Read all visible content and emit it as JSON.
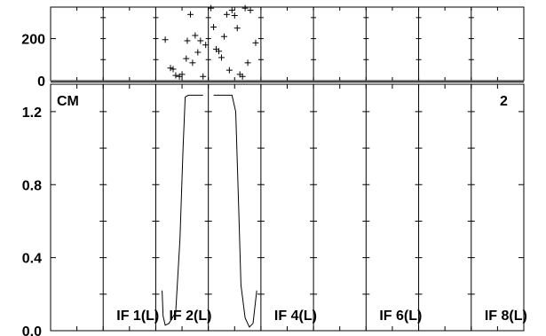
{
  "chart_data": {
    "type": "line",
    "panel_label": "CM",
    "page_number": "2",
    "top": {
      "ylim": [
        0,
        350
      ],
      "yticks": [
        0,
        200
      ],
      "series": [
        {
          "points": [
            [
              2.18,
              195
            ],
            [
              2.28,
              60
            ],
            [
              2.33,
              55
            ],
            [
              2.38,
              25
            ],
            [
              2.45,
              20
            ],
            [
              2.5,
              30
            ],
            [
              2.58,
              105
            ],
            [
              2.6,
              190
            ],
            [
              2.66,
              315
            ],
            [
              2.7,
              85
            ],
            [
              2.75,
              215
            ],
            [
              2.8,
              135
            ],
            [
              2.85,
              190
            ],
            [
              2.9,
              20
            ],
            [
              2.95,
              170
            ],
            [
              3.05,
              345
            ],
            [
              3.1,
              255
            ],
            [
              3.15,
              150
            ],
            [
              3.2,
              140
            ],
            [
              3.25,
              110
            ],
            [
              3.3,
              210
            ],
            [
              3.35,
              315
            ],
            [
              3.4,
              50
            ],
            [
              3.45,
              335
            ],
            [
              3.5,
              310
            ],
            [
              3.55,
              250
            ],
            [
              3.6,
              30
            ],
            [
              3.65,
              20
            ],
            [
              3.7,
              345
            ],
            [
              3.75,
              85
            ],
            [
              3.8,
              335
            ],
            [
              3.9,
              180
            ]
          ]
        }
      ]
    },
    "bottom": {
      "ylim": [
        0,
        1.35
      ],
      "yticks": [
        "0.0",
        "0.4",
        "0.8",
        "1.2"
      ],
      "series": [
        {
          "points": [
            [
              2.12,
              0.22
            ],
            [
              2.14,
              0.08
            ],
            [
              2.18,
              0.03
            ],
            [
              2.25,
              0.04
            ],
            [
              2.38,
              0.1
            ],
            [
              2.46,
              0.5
            ],
            [
              2.52,
              1.0
            ],
            [
              2.56,
              1.28
            ],
            [
              2.62,
              1.29
            ],
            [
              2.9,
              1.29
            ]
          ]
        },
        {
          "points": [
            [
              3.1,
              1.29
            ],
            [
              3.45,
              1.29
            ],
            [
              3.52,
              1.2
            ],
            [
              3.58,
              0.65
            ],
            [
              3.62,
              0.25
            ],
            [
              3.7,
              0.07
            ],
            [
              3.78,
              0.02
            ],
            [
              3.85,
              0.04
            ],
            [
              3.92,
              0.22
            ]
          ]
        }
      ]
    },
    "xlim": [
      0,
      9
    ],
    "panel_boundaries": [
      1,
      2,
      3,
      4,
      5,
      6,
      7,
      8
    ],
    "xtick_step": 0.5,
    "if_labels": [
      {
        "text": "IF 1(L)",
        "x": 0.95
      },
      {
        "text": "IF 2(L)",
        "x": 1.95
      },
      {
        "text": "IF 4(L)",
        "x": 3.95
      },
      {
        "text": "IF 6(L)",
        "x": 5.95
      },
      {
        "text": "IF 8(L)",
        "x": 7.95
      }
    ]
  }
}
